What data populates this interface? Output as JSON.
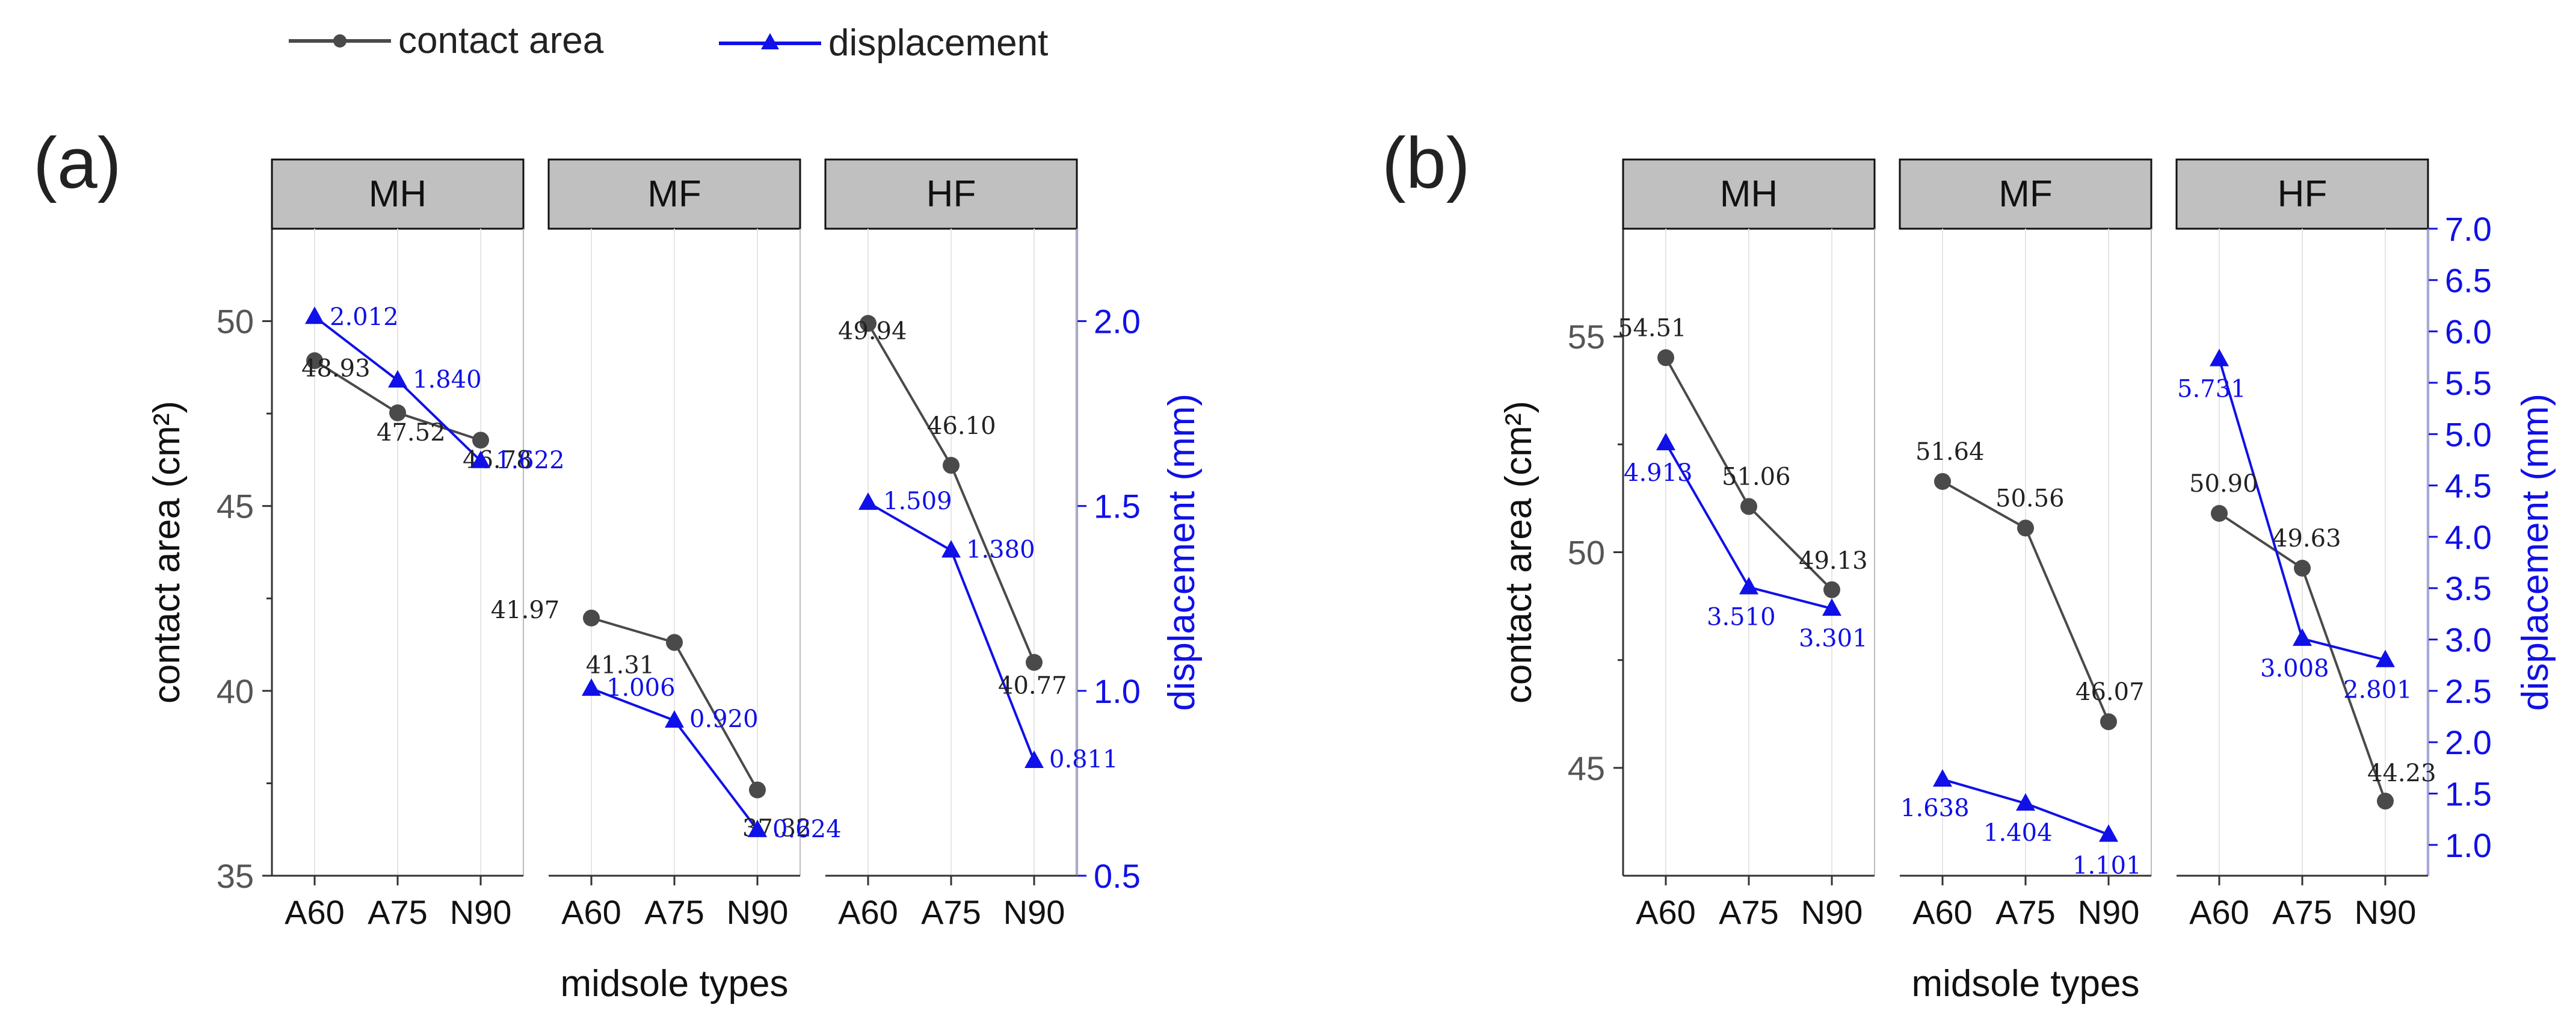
{
  "legend": {
    "items": [
      {
        "label": "contact area",
        "color": "#4a4a4a",
        "marker": "circle"
      },
      {
        "label": "displacement",
        "color": "#1010e8",
        "marker": "triangle"
      }
    ]
  },
  "colors": {
    "area": "#4a4a4a",
    "disp": "#1010e8",
    "strip": "#c0c0c0",
    "grid": "#e6e6e6"
  },
  "chart_data": [
    {
      "type": "line",
      "panel_label": "(a)",
      "xlabel": "midsole types",
      "ylabel_left": "contact area  (cm²)",
      "ylabel_right": "displacement  (mm)",
      "ylim_left": [
        35,
        52.5
      ],
      "yticks_left": [
        35,
        40,
        45,
        50
      ],
      "ylim_right": [
        0.5,
        2.25
      ],
      "yticks_right": [
        "0.5",
        "1.0",
        "1.5",
        "2.0"
      ],
      "categories": [
        "A60",
        "A75",
        "N90"
      ],
      "facets": [
        {
          "name": "MH",
          "contact_area": [
            48.93,
            47.52,
            46.78
          ],
          "contact_area_labels": [
            "48.93",
            "47.52",
            "46.78"
          ],
          "displacement": [
            2.012,
            1.84,
            1.622
          ],
          "displacement_labels": [
            "2.012",
            "1.840",
            "1.622"
          ]
        },
        {
          "name": "MF",
          "contact_area": [
            41.97,
            41.31,
            37.32
          ],
          "contact_area_labels": [
            "41.97",
            "41.31",
            "37.32"
          ],
          "displacement": [
            1.006,
            0.92,
            0.624
          ],
          "displacement_labels": [
            "1.006",
            "0.920",
            "0.624"
          ]
        },
        {
          "name": "HF",
          "contact_area": [
            49.94,
            46.1,
            40.77
          ],
          "contact_area_labels": [
            "49.94",
            "46.10",
            "40.77"
          ],
          "displacement": [
            1.509,
            1.38,
            0.811
          ],
          "displacement_labels": [
            "1.509",
            "1.380",
            "0.811"
          ]
        }
      ]
    },
    {
      "type": "line",
      "panel_label": "(b)",
      "xlabel": "midsole types",
      "ylabel_left": "contact area  (cm²)",
      "ylabel_right": "displacement  (mm)",
      "ylim_left": [
        42.5,
        57.5
      ],
      "yticks_left": [
        45,
        50,
        55
      ],
      "ylim_right": [
        0.7,
        7.0
      ],
      "yticks_right": [
        "1.0",
        "1.5",
        "2.0",
        "2.5",
        "3.0",
        "3.5",
        "4.0",
        "4.5",
        "5.0",
        "5.5",
        "6.0",
        "6.5",
        "7.0"
      ],
      "categories": [
        "A60",
        "A75",
        "N90"
      ],
      "facets": [
        {
          "name": "MH",
          "contact_area": [
            54.51,
            51.06,
            49.13
          ],
          "contact_area_labels": [
            "54.51",
            "51.06",
            "49.13"
          ],
          "displacement": [
            4.913,
            3.51,
            3.301
          ],
          "displacement_labels": [
            "4.913",
            "3.510",
            "3.301"
          ]
        },
        {
          "name": "MF",
          "contact_area": [
            51.64,
            50.56,
            46.07
          ],
          "contact_area_labels": [
            "51.64",
            "50.56",
            "46.07"
          ],
          "displacement": [
            1.638,
            1.404,
            1.101
          ],
          "displacement_labels": [
            "1.638",
            "1.404",
            "1.101"
          ]
        },
        {
          "name": "HF",
          "contact_area": [
            50.9,
            49.63,
            44.23
          ],
          "contact_area_labels": [
            "50.90",
            "49.63",
            "44.23"
          ],
          "displacement": [
            5.731,
            3.008,
            2.801
          ],
          "displacement_labels": [
            "5.731",
            "3.008",
            "2.801"
          ]
        }
      ]
    }
  ]
}
